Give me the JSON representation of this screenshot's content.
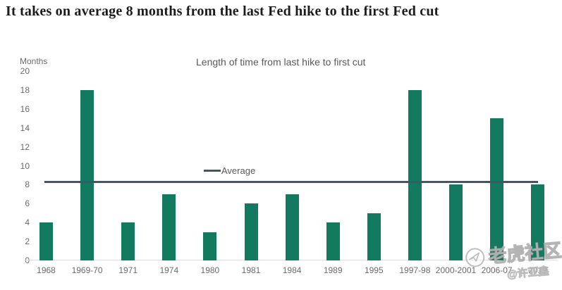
{
  "page_title": "It takes on average 8 months from the last Fed hike to the first Fed cut",
  "chart_data": {
    "type": "bar",
    "title": "Length of time from last hike to first cut",
    "ylabel": "Months",
    "xlabel": "",
    "ylim": [
      0,
      20
    ],
    "yticks": [
      20,
      18,
      16,
      14,
      12,
      10,
      8,
      6,
      4,
      2,
      0
    ],
    "categories": [
      "1968",
      "1969-70",
      "1971",
      "1974",
      "1980",
      "1981",
      "1984",
      "1989",
      "1995",
      "1997-98",
      "2000-2001",
      "2006-07",
      "2019"
    ],
    "values": [
      4,
      18,
      4,
      7,
      3,
      6,
      7,
      4,
      5,
      18,
      8,
      15,
      8
    ],
    "average_line": {
      "label": "Average",
      "value": 8.35
    },
    "grid": false,
    "legend_position": "center-inside",
    "bar_color": "#127a5e",
    "line_color": "#44546a",
    "axis_text_color": "#6b6b6b"
  },
  "watermark": {
    "community": "老虎社区",
    "handle": "@许亚鑫",
    "logo": "tiger-community-logo"
  }
}
